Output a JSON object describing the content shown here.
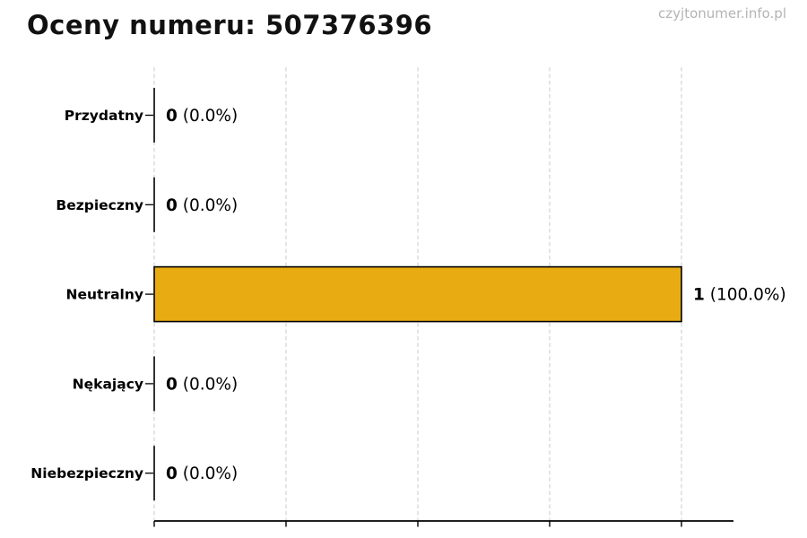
{
  "page": {
    "title": "Oceny numeru: 507376396",
    "watermark": "czyjtonumer.info.pl"
  },
  "colors": {
    "bar_fill": "#E8AC12",
    "bar_stroke": "#000000",
    "grid": "#cfcfcf",
    "axis": "#000000",
    "label_text": "#000000",
    "watermark_text": "#b4b4b4"
  },
  "chart_data": {
    "type": "bar",
    "orientation": "horizontal",
    "title": "Oceny numeru: 507376396",
    "xlabel": "",
    "ylabel": "",
    "categories": [
      "Przydatny",
      "Bezpieczny",
      "Neutralny",
      "Nękający",
      "Niebezpieczny"
    ],
    "values": [
      0,
      0,
      1,
      0,
      0
    ],
    "value_labels": [
      {
        "count": "0",
        "percent": "(0.0%)"
      },
      {
        "count": "0",
        "percent": "(0.0%)"
      },
      {
        "count": "1",
        "percent": "(100.0%)"
      },
      {
        "count": "0",
        "percent": "(0.0%)"
      },
      {
        "count": "0",
        "percent": "(0.0%)"
      }
    ],
    "xlim": [
      0,
      1.1
    ],
    "x_ticks": [
      0,
      0.25,
      0.5,
      0.75,
      1.0
    ],
    "grid": true,
    "grid_style": "dashed",
    "legend": false
  }
}
